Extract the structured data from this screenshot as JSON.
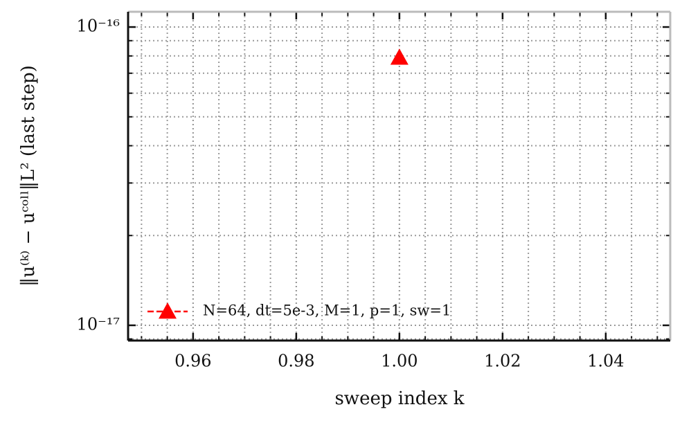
{
  "chart_data": {
    "type": "line",
    "x_label": "sweep index k",
    "y_label": "‖u⁽ᵏ⁾ − uᶜᵒˡˡ‖L² (last step)",
    "x": [
      1.0
    ],
    "series": [
      {
        "name": "N=64, dt=5e-3, M=1, p=1, sw=1",
        "color": "#ff0000",
        "marker": "triangle",
        "linestyle": "dashed",
        "values": [
          7.9e-17
        ]
      }
    ],
    "xlim": [
      0.9474,
      1.0525
    ],
    "xticks": [
      {
        "value": 0.96,
        "label": "0.96"
      },
      {
        "value": 0.98,
        "label": "0.98"
      },
      {
        "value": 1.0,
        "label": "1.00"
      },
      {
        "value": 1.02,
        "label": "1.02"
      },
      {
        "value": 1.04,
        "label": "1.04"
      }
    ],
    "ylim": [
      8.89e-18,
      1.125e-16
    ],
    "yticks": [
      {
        "value": 1e-17,
        "label": "10⁻¹⁷"
      },
      {
        "value": 1e-16,
        "label": "10⁻¹⁶"
      }
    ],
    "y_scale": "log",
    "grid": true,
    "legend_position": "lower left"
  }
}
